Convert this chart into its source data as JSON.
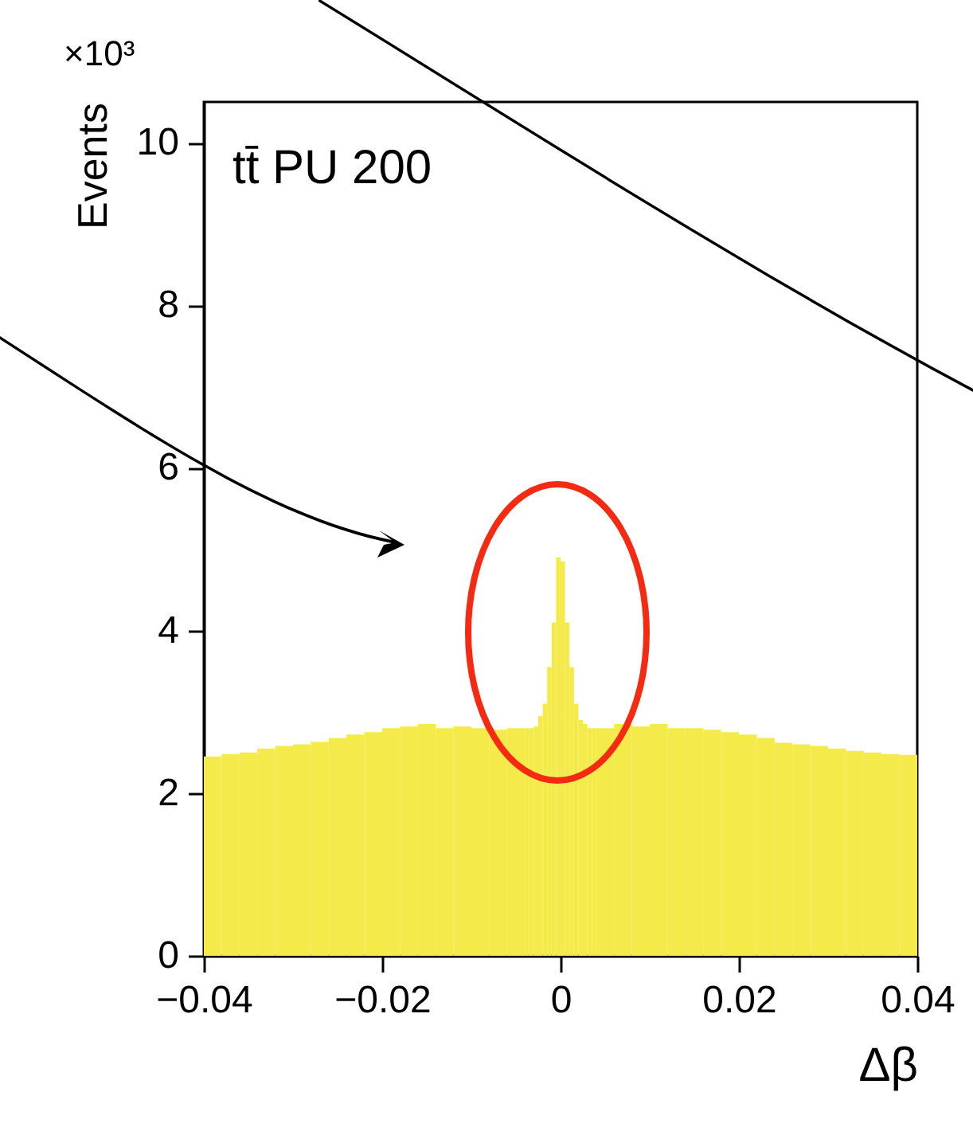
{
  "chart_data": {
    "type": "histogram",
    "xlabel": "Δβ",
    "ylabel": "Events",
    "annotations": [
      "tt̄ PU 200",
      "×10³"
    ],
    "bins": [
      -0.04,
      -0.038,
      -0.036,
      -0.034,
      -0.032,
      -0.03,
      -0.028,
      -0.026,
      -0.024,
      -0.022,
      -0.02,
      -0.018,
      -0.016,
      -0.014,
      -0.012,
      -0.01,
      -0.008,
      -0.006,
      -0.004,
      -0.0035,
      -0.003,
      -0.0025,
      -0.002,
      -0.0015,
      -0.001,
      -0.0005,
      0,
      0.0005,
      0.001,
      0.0015,
      0.002,
      0.0025,
      0.003,
      0.0035,
      0.004,
      0.006,
      0.008,
      0.01,
      0.012,
      0.014,
      0.016,
      0.018,
      0.02,
      0.022,
      0.024,
      0.026,
      0.028,
      0.03,
      0.032,
      0.034,
      0.036,
      0.038,
      0.04
    ],
    "values": [
      2.45,
      2.48,
      2.5,
      2.55,
      2.58,
      2.6,
      2.63,
      2.68,
      2.72,
      2.75,
      2.8,
      2.82,
      2.85,
      2.8,
      2.82,
      2.8,
      2.78,
      2.8,
      2.8,
      2.8,
      2.82,
      2.95,
      3.1,
      3.55,
      4.1,
      4.9,
      4.85,
      4.1,
      3.55,
      3.1,
      2.9,
      2.85,
      2.8,
      2.8,
      2.8,
      2.85,
      2.82,
      2.85,
      2.8,
      2.8,
      2.78,
      2.75,
      2.72,
      2.68,
      2.62,
      2.6,
      2.58,
      2.55,
      2.52,
      2.5,
      2.48,
      2.47
    ],
    "color": "#f4ea4a",
    "xlim": [
      -0.04,
      0.04
    ],
    "xticks": [
      {
        "value": -0.04,
        "label": "−0.04"
      },
      {
        "value": -0.02,
        "label": "−0.02"
      },
      0,
      0.02,
      0.04
    ],
    "ylim": [
      0,
      10.5
    ],
    "yticks": [
      0,
      2,
      4,
      6,
      8,
      10
    ],
    "grid": false
  }
}
